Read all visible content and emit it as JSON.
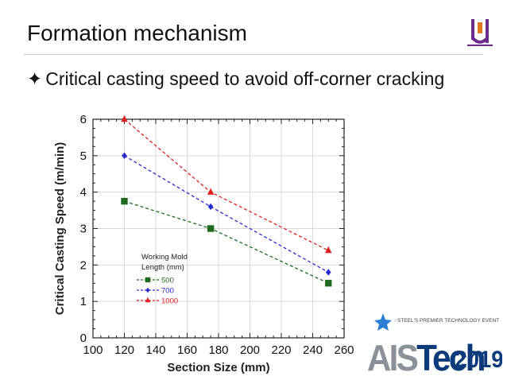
{
  "slide": {
    "title": "Formation mechanism",
    "bullet_glyph": "✦",
    "bullet_text": "Critical casting speed to avoid off-corner cracking"
  },
  "branding": {
    "logo_icon": "university-logo-icon",
    "event_tagline": "STEEL'S PREMIER TECHNOLOGY EVENT",
    "event_name_a": "AIS",
    "event_name_b": "Tech",
    "event_year": "2019"
  },
  "chart_data": {
    "type": "line",
    "xlabel": "Section Size (mm)",
    "ylabel": "Critical Casting Speed (m/min)",
    "xlim": [
      100,
      260
    ],
    "ylim": [
      0,
      6
    ],
    "xticks": [
      100,
      120,
      140,
      160,
      180,
      200,
      220,
      240,
      260
    ],
    "yticks": [
      0,
      1,
      2,
      3,
      4,
      5,
      6
    ],
    "legend_title_line1": "Working Mold",
    "legend_title_line2": "Length (mm)",
    "legend_position": "lower-left",
    "grid": true,
    "series": [
      {
        "name": "500",
        "color": "#1e6b1e",
        "marker": "square",
        "x": [
          120,
          175,
          250
        ],
        "y": [
          3.75,
          3.0,
          1.5
        ]
      },
      {
        "name": "700",
        "color": "#2a2ad0",
        "marker": "diamond",
        "x": [
          120,
          175,
          250
        ],
        "y": [
          5.0,
          3.6,
          1.8
        ]
      },
      {
        "name": "1000",
        "color": "#e02020",
        "marker": "triangle",
        "x": [
          120,
          175,
          250
        ],
        "y": [
          6.0,
          4.0,
          2.4
        ]
      }
    ]
  }
}
